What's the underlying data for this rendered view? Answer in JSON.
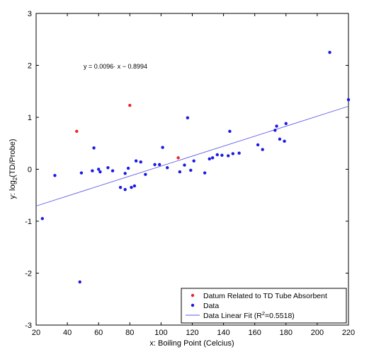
{
  "chart_data": {
    "type": "scatter",
    "xlabel": "x: Boiling Point (Celcius)",
    "ylabel_prefix": "y: log",
    "ylabel_sub": "2",
    "ylabel_suffix": "(TD/Probe)",
    "xlim": [
      20,
      220
    ],
    "ylim": [
      -3,
      3
    ],
    "xticks": [
      20,
      40,
      60,
      80,
      100,
      120,
      140,
      160,
      180,
      200,
      220
    ],
    "yticks": [
      -3,
      -2,
      -1,
      0,
      1,
      2,
      3
    ],
    "grid": false,
    "legend_position": "bottom-right",
    "annotation": "y = 0.0096· x − 0.8994",
    "series": [
      {
        "name": "Datum Related to TD Tube Absorbent",
        "color": "#e8262c",
        "marker": "dot",
        "points": [
          [
            46,
            0.73
          ],
          [
            80,
            1.23
          ],
          [
            111,
            0.22
          ]
        ]
      },
      {
        "name": "Data",
        "color": "#1a1ae6",
        "marker": "dot",
        "points": [
          [
            24,
            -0.95
          ],
          [
            32,
            -0.12
          ],
          [
            48,
            -2.17
          ],
          [
            49,
            -0.07
          ],
          [
            56,
            -0.03
          ],
          [
            57,
            0.41
          ],
          [
            60,
            0.0
          ],
          [
            61,
            -0.05
          ],
          [
            66,
            0.03
          ],
          [
            69,
            -0.03
          ],
          [
            74,
            -0.35
          ],
          [
            77,
            -0.08
          ],
          [
            77,
            -0.39
          ],
          [
            79,
            0.02
          ],
          [
            81,
            -0.35
          ],
          [
            83,
            -0.32
          ],
          [
            84,
            0.16
          ],
          [
            87,
            0.14
          ],
          [
            90,
            -0.1
          ],
          [
            96,
            0.09
          ],
          [
            99,
            0.09
          ],
          [
            101,
            0.42
          ],
          [
            104,
            0.03
          ],
          [
            112,
            -0.05
          ],
          [
            115,
            0.08
          ],
          [
            117,
            0.99
          ],
          [
            119,
            -0.02
          ],
          [
            121,
            0.16
          ],
          [
            128,
            -0.07
          ],
          [
            131,
            0.2
          ],
          [
            133,
            0.22
          ],
          [
            136,
            0.28
          ],
          [
            139,
            0.27
          ],
          [
            143,
            0.26
          ],
          [
            144,
            0.73
          ],
          [
            146,
            0.3
          ],
          [
            150,
            0.31
          ],
          [
            162,
            0.47
          ],
          [
            165,
            0.38
          ],
          [
            173,
            0.75
          ],
          [
            174,
            0.83
          ],
          [
            176,
            0.58
          ],
          [
            179,
            0.54
          ],
          [
            180,
            0.88
          ],
          [
            208,
            2.25
          ],
          [
            220,
            1.34
          ]
        ]
      }
    ],
    "fit": {
      "name_prefix": "Data Linear Fit (R",
      "name_sup": "2",
      "name_suffix": "=0.5518)",
      "color": "#5a5ae6",
      "slope": 0.0096,
      "intercept": -0.8994,
      "x_range": [
        20,
        220
      ]
    }
  }
}
